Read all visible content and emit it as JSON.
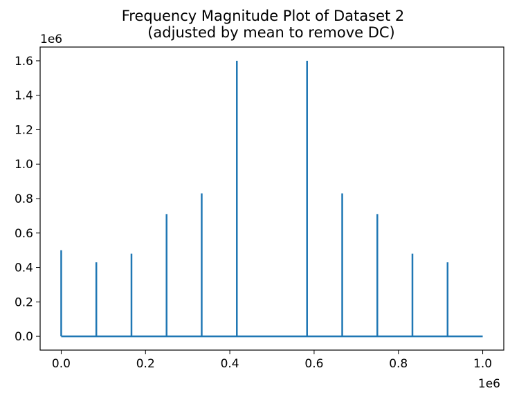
{
  "chart_data": {
    "type": "line",
    "title": "Frequency Magnitude Plot of Dataset 2",
    "subtitle": "(adjusted by mean to remove DC)",
    "x_offset_label": "1e6",
    "y_offset_label": "1e6",
    "xlim": [
      -0.05,
      1.05
    ],
    "ylim": [
      -0.08,
      1.68
    ],
    "x_ticks": [
      0.0,
      0.2,
      0.4,
      0.6,
      0.8,
      1.0
    ],
    "x_tick_labels": [
      "0.0",
      "0.2",
      "0.4",
      "0.6",
      "0.8",
      "1.0"
    ],
    "y_ticks": [
      0.0,
      0.2,
      0.4,
      0.6,
      0.8,
      1.0,
      1.2,
      1.4,
      1.6
    ],
    "y_tick_labels": [
      "0.0",
      "0.2",
      "0.4",
      "0.6",
      "0.8",
      "1.0",
      "1.2",
      "1.4",
      "1.6"
    ],
    "baseline": 0.0,
    "x_range": [
      0.0,
      1.0
    ],
    "peaks": [
      {
        "x": 0.0,
        "y": 0.5
      },
      {
        "x": 0.0833,
        "y": 0.43
      },
      {
        "x": 0.1667,
        "y": 0.48
      },
      {
        "x": 0.25,
        "y": 0.71
      },
      {
        "x": 0.3333,
        "y": 0.83
      },
      {
        "x": 0.4167,
        "y": 1.6
      },
      {
        "x": 0.5833,
        "y": 1.6
      },
      {
        "x": 0.6667,
        "y": 0.83
      },
      {
        "x": 0.75,
        "y": 0.71
      },
      {
        "x": 0.8333,
        "y": 0.48
      },
      {
        "x": 0.9167,
        "y": 0.43
      }
    ],
    "grid": false,
    "line_color": "#1f77b4"
  }
}
